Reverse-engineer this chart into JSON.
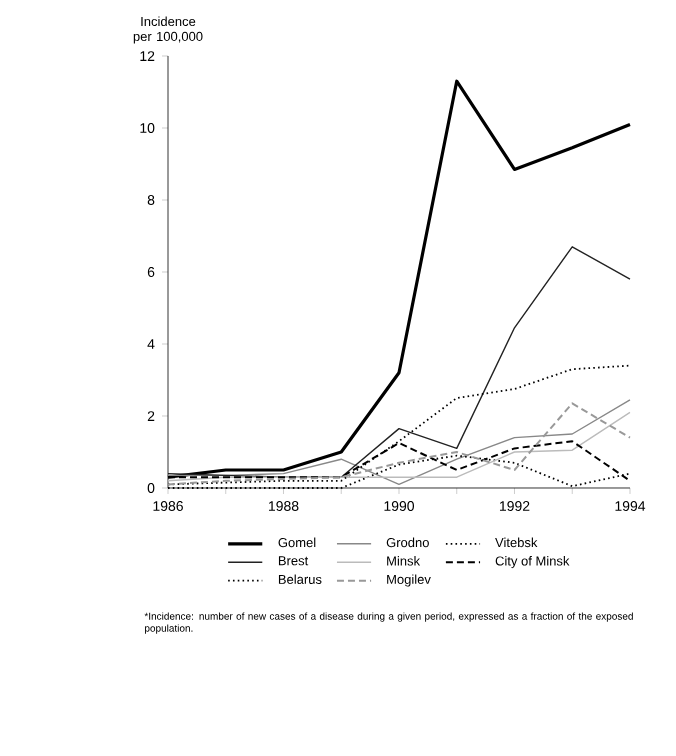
{
  "chart_data": {
    "type": "line",
    "ylabel": "Incidence per 100,000",
    "x": [
      1986,
      1987,
      1988,
      1989,
      1990,
      1991,
      1992,
      1993,
      1994
    ],
    "xlim": [
      1986,
      1994
    ],
    "xticks": [
      1986,
      {
        "value": 1987,
        "label": null
      },
      1988,
      {
        "value": 1989,
        "label": null
      },
      1990,
      {
        "value": 1991,
        "label": null
      },
      1992,
      {
        "value": 1993,
        "label": null
      },
      1994
    ],
    "ylim": [
      0,
      12
    ],
    "yticks": [
      0,
      2,
      4,
      6,
      8,
      10,
      12
    ],
    "grid": false,
    "legend": "bottom",
    "marker": "none",
    "series": [
      {
        "name": "Gomel",
        "color": "#000000",
        "line_style": "solid",
        "values": [
          0.3,
          0.5,
          0.5,
          1.0,
          3.2,
          11.3,
          8.85,
          9.45,
          10.1
        ]
      },
      {
        "name": "Grodno",
        "color": "#888888",
        "line_style": "solid",
        "values": [
          0.35,
          0.35,
          0.4,
          0.8,
          0.1,
          0.8,
          1.4,
          1.5,
          2.45
        ]
      },
      {
        "name": "Vitebsk",
        "color": "#000000",
        "line_style": "dotted",
        "values": [
          0.0,
          0.0,
          0.0,
          0.0,
          0.65,
          0.9,
          0.7,
          0.05,
          0.4
        ]
      },
      {
        "name": "Brest",
        "color": "#222222",
        "line_style": "solid",
        "values": [
          0.4,
          0.35,
          0.3,
          0.3,
          1.65,
          1.1,
          4.45,
          6.7,
          5.8
        ]
      },
      {
        "name": "Minsk",
        "color": "#bbbbbb",
        "line_style": "solid",
        "values": [
          0.2,
          0.3,
          0.3,
          0.3,
          0.3,
          0.3,
          1.0,
          1.05,
          2.1
        ]
      },
      {
        "name": "City of Minsk",
        "color": "#000000",
        "line_style": "dashed",
        "values": [
          0.3,
          0.3,
          0.3,
          0.3,
          1.25,
          0.5,
          1.1,
          1.3,
          0.2
        ]
      },
      {
        "name": "Belarus",
        "color": "#000000",
        "line_style": "dotted",
        "values": [
          0.1,
          0.15,
          0.2,
          0.2,
          1.3,
          2.5,
          2.75,
          3.3,
          3.4
        ]
      },
      {
        "name": "Mogilev",
        "color": "#999999",
        "line_style": "dashed",
        "values": [
          0.1,
          0.2,
          0.25,
          0.3,
          0.7,
          1.0,
          0.5,
          2.35,
          1.4
        ]
      }
    ],
    "annotations": [
      "*Incidence: number of new cases of a disease during a given period, expressed as a fraction of the exposed population."
    ]
  }
}
